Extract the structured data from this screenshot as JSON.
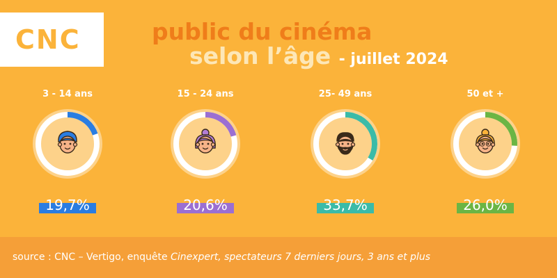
{
  "logo": "CNC",
  "title": {
    "line1": "public du cinéma",
    "line2": "selon l’âge",
    "line2_suffix": "- juillet 2024"
  },
  "source": {
    "prefix": "source : CNC – Vertigo, enquête ",
    "italic": "Cinexpert, spectateurs 7 derniers jours, 3 ans et plus"
  },
  "colors": {
    "background": "#fbb33a",
    "title_orange": "#ef7d1a",
    "title_cream": "#fde7b7",
    "footer": "#f59f38"
  },
  "chart_data": {
    "type": "pie",
    "unit": "%",
    "categories": [
      "3 - 14 ans",
      "15 - 24 ans",
      "25- 49 ans",
      "50 et +"
    ],
    "values": [
      19.7,
      20.6,
      33.7,
      26.0
    ],
    "value_labels": [
      "19,7%",
      "20,6%",
      "33,7%",
      "26,0%"
    ],
    "colors": [
      "#2a7de1",
      "#9b6fd2",
      "#3bbba8",
      "#6bb544"
    ],
    "icons": [
      "child-face-icon",
      "young-woman-face-icon",
      "bearded-man-face-icon",
      "elderly-woman-face-icon"
    ]
  }
}
